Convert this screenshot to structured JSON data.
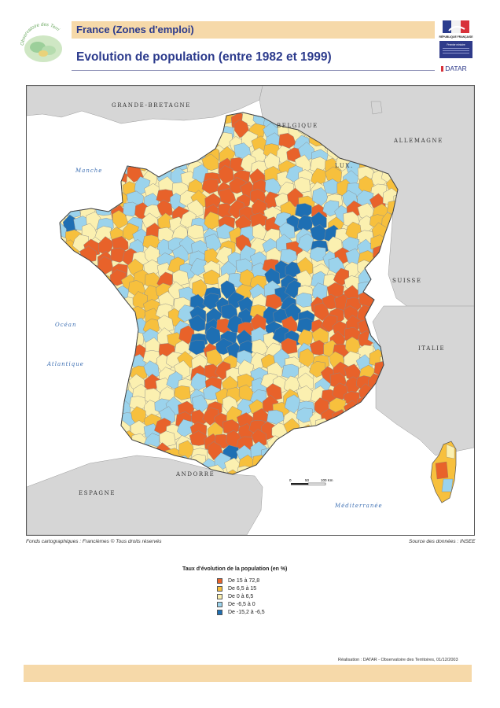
{
  "header": {
    "region_title": "France (Zones d'emploi)",
    "map_title": "Evolution de population (entre 1982 et 1999)",
    "observatoire_logo_text": "Observatoire des Territoires",
    "rf_logo_text": "RÉPUBLIQUE FRANÇAISE",
    "premier_ministre_text": "Premier ministre",
    "datar_logo": "DATAR"
  },
  "map": {
    "countries": [
      "GRANDE-BRETAGNE",
      "BELGIQUE",
      "ALLEMAGNE",
      "LUX.",
      "SUISSE",
      "ITALIE",
      "ANDORRE",
      "ESPAGNE"
    ],
    "seas": [
      "Manche",
      "Océan",
      "Atlantique",
      "Méditerranée"
    ],
    "scale": {
      "ticks": [
        "0",
        "50",
        "100 Km"
      ]
    }
  },
  "credits": {
    "left": "Fonds cartographiques : Francièmes © Tous droits réservés",
    "right": "Source des données : INSEE"
  },
  "legend": {
    "title": "Taux d'évolution de la population (en %)",
    "items": [
      {
        "label": "De 15 à 72,8",
        "color": "#e8622a"
      },
      {
        "label": "De 6,5 à 15",
        "color": "#f7c03d"
      },
      {
        "label": "De 0 à 6,5",
        "color": "#fbf0b0"
      },
      {
        "label": "De -6,5 à 0",
        "color": "#9bd3ec"
      },
      {
        "label": "De -15,2 à -6,5",
        "color": "#1e6fb3"
      }
    ]
  },
  "footer": {
    "realisation": "Réalisation : DATAR - Observatoire des Territoires, 01/12/2003"
  },
  "colors": {
    "title_band": "#f6d9a9",
    "title_text": "#2b3a8c",
    "neighbor_land": "#d6d6d6",
    "sea": "#ffffff"
  }
}
